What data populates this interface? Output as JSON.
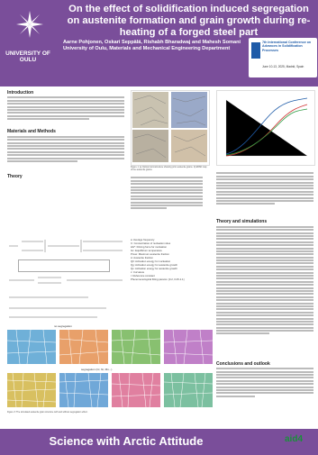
{
  "header": {
    "title": "On the effect of solidification induced segregation on austenite formation and grain growth during re-heating of a forged steel part",
    "university": "UNIVERSITY OF OULU",
    "authors": "Aarne Pohjonen, Oskari Seppälä, Rishabh Bharadwaj and Mahesh Somani",
    "affiliation": "University of Oulu, Materials and Mechanical Engineering Department"
  },
  "conference": {
    "name": "7th International Conference on Advances in Solidification Processes",
    "date": "June 10-13, 2025, Madrid, Spain"
  },
  "sections": {
    "intro_heading": "Introduction",
    "materials_heading": "Materials and Methods",
    "theory_heading": "Theory",
    "theory_sim_heading": "Theory and simulations",
    "conclusions_heading": "Conclusions and outlook"
  },
  "figures": {
    "fig1_caption": "Figure 1: a) Optical microstructure showing prior austenite grains. b) EBSD map of the austenite grains.",
    "no_seg_label": "no segregation",
    "seg_label": "segregation (Cr, Ni, Mn...)",
    "fig3_caption": "Figure 3: The simulated austenite grain structure with and without segregation effect."
  },
  "legend": [
    "a: Average frequency",
    "C: Concentration of nucleation sites",
    "ΔG*: Driving force for nucleation",
    "Gc: Equilibrium temperature",
    "Pmax: Maximum austenite fraction",
    "A: Austenite fraction",
    "Q0: Activation energy for nucleation",
    "Qg: Activation energy for austenite growth",
    "Qs: Activation energy for austenite growth",
    "c: Curvature",
    "r: Reference constant",
    "Phenomenological fitting params: [0.2, 0.25-1.1]"
  ],
  "footer": {
    "slogan": "Science with Arctic Attitude",
    "partner": "aid4"
  }
}
